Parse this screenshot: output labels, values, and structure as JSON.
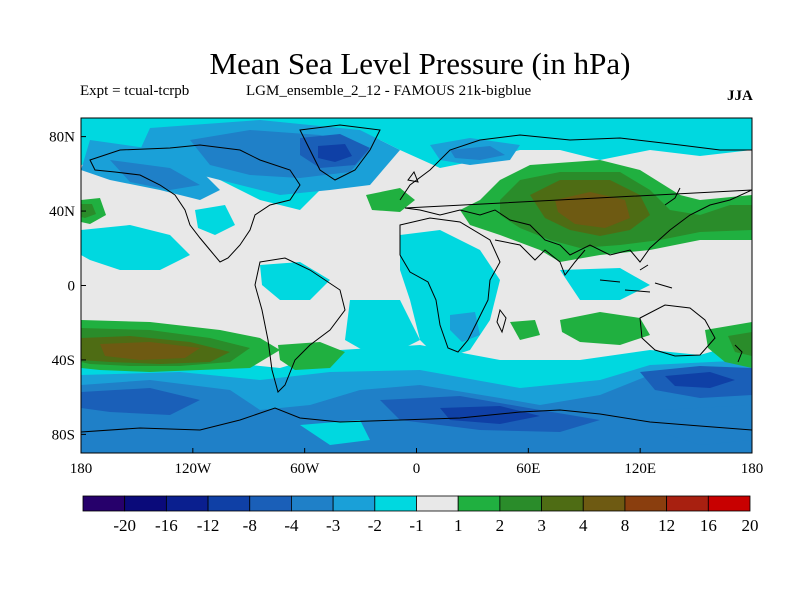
{
  "header": {
    "title": "Mean Sea Level Pressure (in hPa)",
    "experiment": "Expt = tcual-tcrpb",
    "run": "LGM_ensemble_2_12 - FAMOUS 21k-bigblue",
    "season": "JJA"
  },
  "map": {
    "projection": "equirectangular",
    "lon_range": [
      -180,
      180
    ],
    "lat_range": [
      -90,
      90
    ],
    "x_ticks": [
      {
        "lon": -180,
        "label": "180"
      },
      {
        "lon": -120,
        "label": "120W"
      },
      {
        "lon": -60,
        "label": "60W"
      },
      {
        "lon": 0,
        "label": "0"
      },
      {
        "lon": 60,
        "label": "60E"
      },
      {
        "lon": 120,
        "label": "120E"
      },
      {
        "lon": 180,
        "label": "180"
      }
    ],
    "y_ticks": [
      {
        "lat": 80,
        "label": "80N"
      },
      {
        "lat": 40,
        "label": "40N"
      },
      {
        "lat": 0,
        "label": "0"
      },
      {
        "lat": -40,
        "label": "40S"
      },
      {
        "lat": -80,
        "label": "80S"
      }
    ],
    "background_color": "#e8e8e8",
    "coastline_color": "#000000"
  },
  "colorbar": {
    "labels": [
      "-20",
      "-16",
      "-12",
      "-8",
      "-4",
      "-3",
      "-2",
      "-1",
      "1",
      "2",
      "3",
      "4",
      "8",
      "12",
      "16",
      "20"
    ],
    "colors": [
      "#26006b",
      "#0a0a7a",
      "#0a1f8f",
      "#0f40a6",
      "#1a5fb8",
      "#1f80c8",
      "#1aa0d8",
      "#00d8e0",
      "#e8e8e8",
      "#20b040",
      "#2a8c2a",
      "#4e6c14",
      "#6e5a12",
      "#8a3e0e",
      "#a82010",
      "#c80000"
    ]
  }
}
